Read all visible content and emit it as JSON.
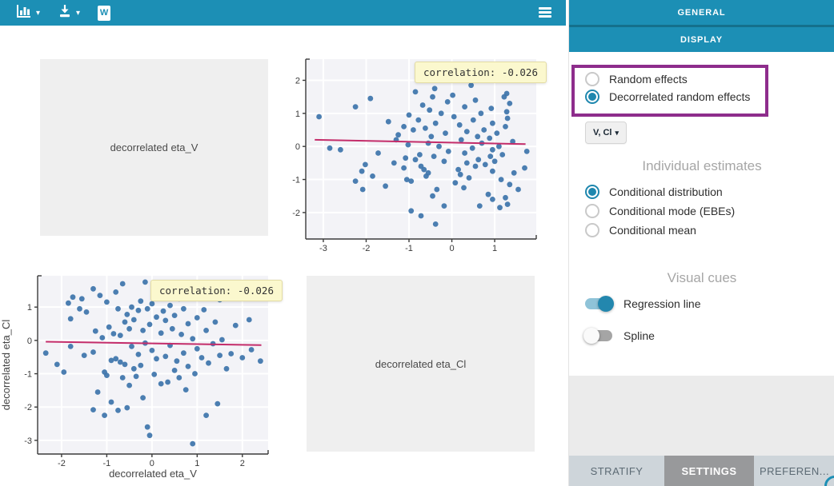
{
  "toolbar": {
    "chart_menu_caret": "▾",
    "export_menu_caret": "▾",
    "word_icon_letter": "W"
  },
  "panel": {
    "header_general": "GENERAL",
    "header_display": "DISPLAY",
    "random_effects_group": {
      "options": [
        {
          "label": "Random effects",
          "selected": false
        },
        {
          "label": "Decorrelated random effects",
          "selected": true
        }
      ]
    },
    "parameter_dropdown": {
      "label": "V, Cl",
      "caret": "▾"
    },
    "individual_estimates": {
      "title": "Individual estimates",
      "options": [
        {
          "label": "Conditional distribution",
          "selected": true
        },
        {
          "label": "Conditional mode (EBEs)",
          "selected": false
        },
        {
          "label": "Conditional mean",
          "selected": false
        }
      ]
    },
    "visual_cues": {
      "title": "Visual cues",
      "toggles": [
        {
          "label": "Regression line",
          "on": true
        },
        {
          "label": "Spline",
          "on": false
        }
      ]
    },
    "tabs": [
      {
        "label": "STRATIFY",
        "active": false
      },
      {
        "label": "SETTINGS",
        "active": true
      },
      {
        "label": "PREFEREN...",
        "active": false
      }
    ]
  },
  "placeholders": {
    "top_left": "decorrelated eta_V",
    "bottom_right": "decorrelated eta_Cl"
  },
  "colors": {
    "teal": "#1c8fb5",
    "teal_dark": "#14708c",
    "accent": "#1e87ae",
    "highlight_purple": "#8e2d8c",
    "dot": "#3d74aa",
    "regression": "#c42d6a",
    "plot_bg": "#f3f3f7",
    "grid": "#ffffff",
    "axis": "#3b3b3b",
    "tooltip_bg": "#fbf8ce"
  },
  "chart_data": [
    {
      "id": "cl_vs_v",
      "type": "scatter",
      "title": "",
      "xlabel": "decorrelated eta_V",
      "ylabel": "decorrelated eta_Cl",
      "xlim": [
        -2.53,
        2.57
      ],
      "ylim": [
        -3.41,
        1.94
      ],
      "xticks": [
        -2,
        -1,
        0,
        1,
        2
      ],
      "yticks": [
        1,
        0,
        -1,
        -2,
        -3
      ],
      "grid": true,
      "legend": "none",
      "points_from": "eta_pairs",
      "transpose": false,
      "regression": {
        "x1": -2.35,
        "y1": -0.04,
        "x2": 2.42,
        "y2": -0.14
      },
      "tooltip": "correlation: -0.026"
    },
    {
      "id": "v_vs_cl",
      "type": "scatter",
      "title": "",
      "xlabel": "",
      "ylabel": "",
      "xlim": [
        -3.41,
        1.97
      ],
      "ylim": [
        -2.8,
        2.64
      ],
      "xticks": [
        -3,
        -2,
        -1,
        0,
        1
      ],
      "yticks": [
        2,
        1,
        0,
        -1,
        -2
      ],
      "grid": true,
      "legend": "none",
      "points_from": "eta_pairs",
      "transpose": true,
      "regression": {
        "x1": -3.2,
        "y1": 0.2,
        "x2": 1.72,
        "y2": 0.07
      },
      "tooltip": "correlation: -0.026"
    }
  ],
  "eta_pairs": [
    [
      -2.35,
      -0.38
    ],
    [
      -2.1,
      -0.72
    ],
    [
      -1.95,
      -0.95
    ],
    [
      -1.85,
      1.12
    ],
    [
      -1.8,
      -0.18
    ],
    [
      -1.8,
      0.65
    ],
    [
      -1.75,
      1.3
    ],
    [
      -1.6,
      0.95
    ],
    [
      -1.55,
      1.25
    ],
    [
      -1.5,
      -0.45
    ],
    [
      -1.45,
      0.85
    ],
    [
      -1.3,
      1.55
    ],
    [
      -1.3,
      -0.35
    ],
    [
      -1.3,
      -2.08
    ],
    [
      -1.25,
      0.28
    ],
    [
      -1.2,
      -1.55
    ],
    [
      -1.15,
      1.35
    ],
    [
      -1.1,
      0.08
    ],
    [
      -1.05,
      -0.95
    ],
    [
      -1.05,
      -2.25
    ],
    [
      -1.0,
      1.15
    ],
    [
      -1.0,
      -1.05
    ],
    [
      -0.95,
      0.4
    ],
    [
      -0.9,
      -0.6
    ],
    [
      -0.9,
      -1.85
    ],
    [
      -0.85,
      0.2
    ],
    [
      -0.8,
      -0.55
    ],
    [
      -0.8,
      1.45
    ],
    [
      -0.75,
      -2.1
    ],
    [
      -0.75,
      0.95
    ],
    [
      -0.7,
      -0.65
    ],
    [
      -0.7,
      0.15
    ],
    [
      -0.65,
      1.7
    ],
    [
      -0.65,
      -1.12
    ],
    [
      -0.6,
      0.55
    ],
    [
      -0.6,
      -0.72
    ],
    [
      -0.55,
      -2.02
    ],
    [
      -0.55,
      0.78
    ],
    [
      -0.5,
      -1.35
    ],
    [
      -0.5,
      0.35
    ],
    [
      -0.45,
      1.0
    ],
    [
      -0.45,
      -0.18
    ],
    [
      -0.4,
      -0.85
    ],
    [
      -0.4,
      0.62
    ],
    [
      -0.35,
      -1.08
    ],
    [
      -0.3,
      0.9
    ],
    [
      -0.3,
      -0.42
    ],
    [
      -0.25,
      1.18
    ],
    [
      -0.25,
      -0.75
    ],
    [
      -0.2,
      0.3
    ],
    [
      -0.2,
      -1.72
    ],
    [
      -0.15,
      1.75
    ],
    [
      -0.15,
      -0.08
    ],
    [
      -0.1,
      0.95
    ],
    [
      -0.1,
      -2.6
    ],
    [
      -0.05,
      -2.85
    ],
    [
      -0.05,
      0.48
    ],
    [
      0.0,
      1.1
    ],
    [
      0.0,
      -0.3
    ],
    [
      0.05,
      -1.02
    ],
    [
      0.1,
      0.7
    ],
    [
      0.1,
      -0.55
    ],
    [
      0.15,
      1.42
    ],
    [
      0.2,
      -1.3
    ],
    [
      0.2,
      0.22
    ],
    [
      0.25,
      0.88
    ],
    [
      0.3,
      -0.48
    ],
    [
      0.3,
      0.6
    ],
    [
      0.35,
      -1.25
    ],
    [
      0.4,
      1.05
    ],
    [
      0.4,
      -0.15
    ],
    [
      0.45,
      0.35
    ],
    [
      0.5,
      -0.9
    ],
    [
      0.5,
      0.75
    ],
    [
      0.55,
      -0.62
    ],
    [
      0.6,
      1.25
    ],
    [
      0.6,
      -1.12
    ],
    [
      0.65,
      0.18
    ],
    [
      0.7,
      -0.38
    ],
    [
      0.7,
      0.95
    ],
    [
      0.75,
      -1.48
    ],
    [
      0.8,
      0.5
    ],
    [
      0.8,
      -0.78
    ],
    [
      0.85,
      1.3
    ],
    [
      0.9,
      -3.1
    ],
    [
      0.9,
      0.05
    ],
    [
      0.95,
      -1.0
    ],
    [
      1.0,
      0.68
    ],
    [
      1.0,
      -0.25
    ],
    [
      1.05,
      1.28
    ],
    [
      1.1,
      -0.52
    ],
    [
      1.15,
      0.92
    ],
    [
      1.2,
      -2.25
    ],
    [
      1.2,
      0.3
    ],
    [
      1.25,
      -0.68
    ],
    [
      1.3,
      1.35
    ],
    [
      1.35,
      -0.1
    ],
    [
      1.4,
      0.55
    ],
    [
      1.45,
      -1.9
    ],
    [
      1.5,
      1.22
    ],
    [
      1.5,
      -0.45
    ],
    [
      1.55,
      0.02
    ],
    [
      1.6,
      1.28
    ],
    [
      1.65,
      -0.85
    ],
    [
      1.75,
      -0.4
    ],
    [
      1.85,
      0.45
    ],
    [
      2.0,
      -0.52
    ],
    [
      2.15,
      0.62
    ],
    [
      2.2,
      -0.28
    ],
    [
      2.4,
      -0.62
    ]
  ]
}
